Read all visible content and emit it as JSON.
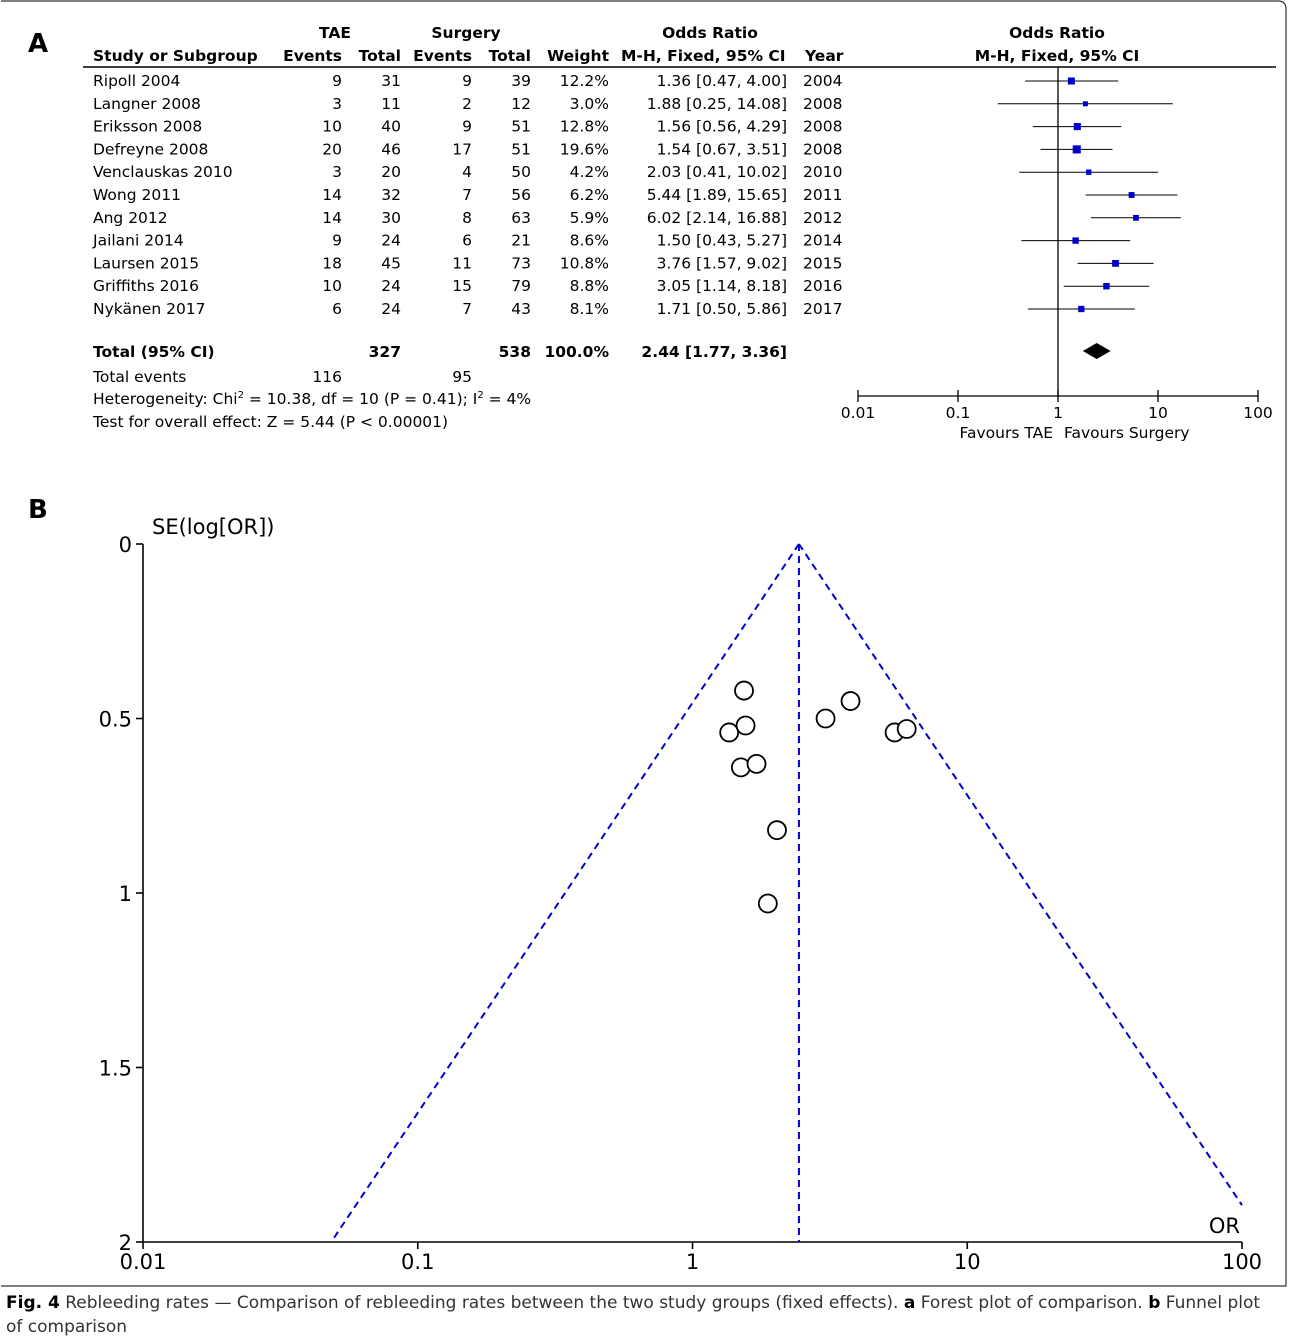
{
  "panel_a_label": "A",
  "panel_b_label": "B",
  "forest": {
    "header": {
      "tae": "TAE",
      "surgery": "Surgery",
      "odds_ratio": "Odds Ratio",
      "study": "Study or Subgroup",
      "events": "Events",
      "total": "Total",
      "weight": "Weight",
      "method": "M-H, Fixed, 95% CI",
      "year": "Year",
      "plot_title": "Odds Ratio",
      "plot_method": "M-H, Fixed, 95% CI"
    },
    "studies": [
      {
        "name": "Ripoll 2004",
        "tae_events": "9",
        "tae_total": "31",
        "sur_events": "9",
        "sur_total": "39",
        "weight": "12.2%",
        "ci_text": "1.36 [0.47, 4.00]",
        "year": "2004",
        "or": 1.36,
        "lo": 0.47,
        "hi": 4.0,
        "w": 12.2
      },
      {
        "name": "Langner 2008",
        "tae_events": "3",
        "tae_total": "11",
        "sur_events": "2",
        "sur_total": "12",
        "weight": "3.0%",
        "ci_text": "1.88 [0.25, 14.08]",
        "year": "2008",
        "or": 1.88,
        "lo": 0.25,
        "hi": 14.08,
        "w": 3.0
      },
      {
        "name": "Eriksson 2008",
        "tae_events": "10",
        "tae_total": "40",
        "sur_events": "9",
        "sur_total": "51",
        "weight": "12.8%",
        "ci_text": "1.56 [0.56, 4.29]",
        "year": "2008",
        "or": 1.56,
        "lo": 0.56,
        "hi": 4.29,
        "w": 12.8
      },
      {
        "name": "Defreyne 2008",
        "tae_events": "20",
        "tae_total": "46",
        "sur_events": "17",
        "sur_total": "51",
        "weight": "19.6%",
        "ci_text": "1.54 [0.67, 3.51]",
        "year": "2008",
        "or": 1.54,
        "lo": 0.67,
        "hi": 3.51,
        "w": 19.6
      },
      {
        "name": "Venclauskas 2010",
        "tae_events": "3",
        "tae_total": "20",
        "sur_events": "4",
        "sur_total": "50",
        "weight": "4.2%",
        "ci_text": "2.03 [0.41, 10.02]",
        "year": "2010",
        "or": 2.03,
        "lo": 0.41,
        "hi": 10.02,
        "w": 4.2
      },
      {
        "name": "Wong 2011",
        "tae_events": "14",
        "tae_total": "32",
        "sur_events": "7",
        "sur_total": "56",
        "weight": "6.2%",
        "ci_text": "5.44 [1.89, 15.65]",
        "year": "2011",
        "or": 5.44,
        "lo": 1.89,
        "hi": 15.65,
        "w": 6.2
      },
      {
        "name": "Ang 2012",
        "tae_events": "14",
        "tae_total": "30",
        "sur_events": "8",
        "sur_total": "63",
        "weight": "5.9%",
        "ci_text": "6.02 [2.14, 16.88]",
        "year": "2012",
        "or": 6.02,
        "lo": 2.14,
        "hi": 16.88,
        "w": 5.9
      },
      {
        "name": "Jailani 2014",
        "tae_events": "9",
        "tae_total": "24",
        "sur_events": "6",
        "sur_total": "21",
        "weight": "8.6%",
        "ci_text": "1.50 [0.43, 5.27]",
        "year": "2014",
        "or": 1.5,
        "lo": 0.43,
        "hi": 5.27,
        "w": 8.6
      },
      {
        "name": "Laursen 2015",
        "tae_events": "18",
        "tae_total": "45",
        "sur_events": "11",
        "sur_total": "73",
        "weight": "10.8%",
        "ci_text": "3.76 [1.57, 9.02]",
        "year": "2015",
        "or": 3.76,
        "lo": 1.57,
        "hi": 9.02,
        "w": 10.8
      },
      {
        "name": "Griffiths 2016",
        "tae_events": "10",
        "tae_total": "24",
        "sur_events": "15",
        "sur_total": "79",
        "weight": "8.8%",
        "ci_text": "3.05 [1.14, 8.18]",
        "year": "2016",
        "or": 3.05,
        "lo": 1.14,
        "hi": 8.18,
        "w": 8.8
      },
      {
        "name": "Nykänen 2017",
        "tae_events": "6",
        "tae_total": "24",
        "sur_events": "7",
        "sur_total": "43",
        "weight": "8.1%",
        "ci_text": "1.71 [0.50, 5.86]",
        "year": "2017",
        "or": 1.71,
        "lo": 0.5,
        "hi": 5.86,
        "w": 8.1
      }
    ],
    "total": {
      "label": "Total (95% CI)",
      "tae_total": "327",
      "sur_total": "538",
      "weight": "100.0%",
      "ci_text": "2.44 [1.77, 3.36]",
      "or": 2.44,
      "lo": 1.77,
      "hi": 3.36
    },
    "total_events": {
      "label": "Total events",
      "tae": "116",
      "sur": "95"
    },
    "heterogeneity": {
      "prefix": "Heterogeneity: Chi",
      "sup1": "2",
      "mid": " = 10.38, df = 10 (P = 0.41); I",
      "sup2": "2",
      "suffix": " = 4%"
    },
    "overall_effect": "Test for overall effect: Z = 5.44 (P < 0.00001)",
    "axis_ticks": [
      "0.01",
      "0.1",
      "1",
      "10",
      "100"
    ],
    "favours_left": "Favours TAE",
    "favours_right": "Favours Surgery",
    "marker_color": "#0000cc"
  },
  "chart_data": {
    "type": "scatter",
    "title": "",
    "ylabel": "SE(log[OR])",
    "xlabel": "OR",
    "x_scale": "log",
    "xlim": [
      0.01,
      100
    ],
    "ylim": [
      0,
      2
    ],
    "y_inverted": true,
    "x_ticks": [
      "0.01",
      "0.1",
      "1",
      "10",
      "100"
    ],
    "y_ticks": [
      "0",
      "0.5",
      "1",
      "1.5",
      "2"
    ],
    "pooled_or": 2.44,
    "funnel_color": "#0000cc",
    "points": [
      {
        "x": 1.36,
        "y": 0.54
      },
      {
        "x": 1.88,
        "y": 1.03
      },
      {
        "x": 1.56,
        "y": 0.52
      },
      {
        "x": 1.54,
        "y": 0.42
      },
      {
        "x": 2.03,
        "y": 0.82
      },
      {
        "x": 5.44,
        "y": 0.54
      },
      {
        "x": 6.02,
        "y": 0.53
      },
      {
        "x": 1.5,
        "y": 0.64
      },
      {
        "x": 3.76,
        "y": 0.45
      },
      {
        "x": 3.05,
        "y": 0.5
      },
      {
        "x": 1.71,
        "y": 0.63
      }
    ]
  },
  "caption": {
    "fig": "Fig. 4",
    "text1": " Rebleeding rates — Comparison of rebleeding rates between the two study groups (fixed effects). ",
    "a": "a",
    "text2": " Forest plot of comparison. ",
    "b": "b",
    "text3": " Funnel plot of comparison"
  }
}
